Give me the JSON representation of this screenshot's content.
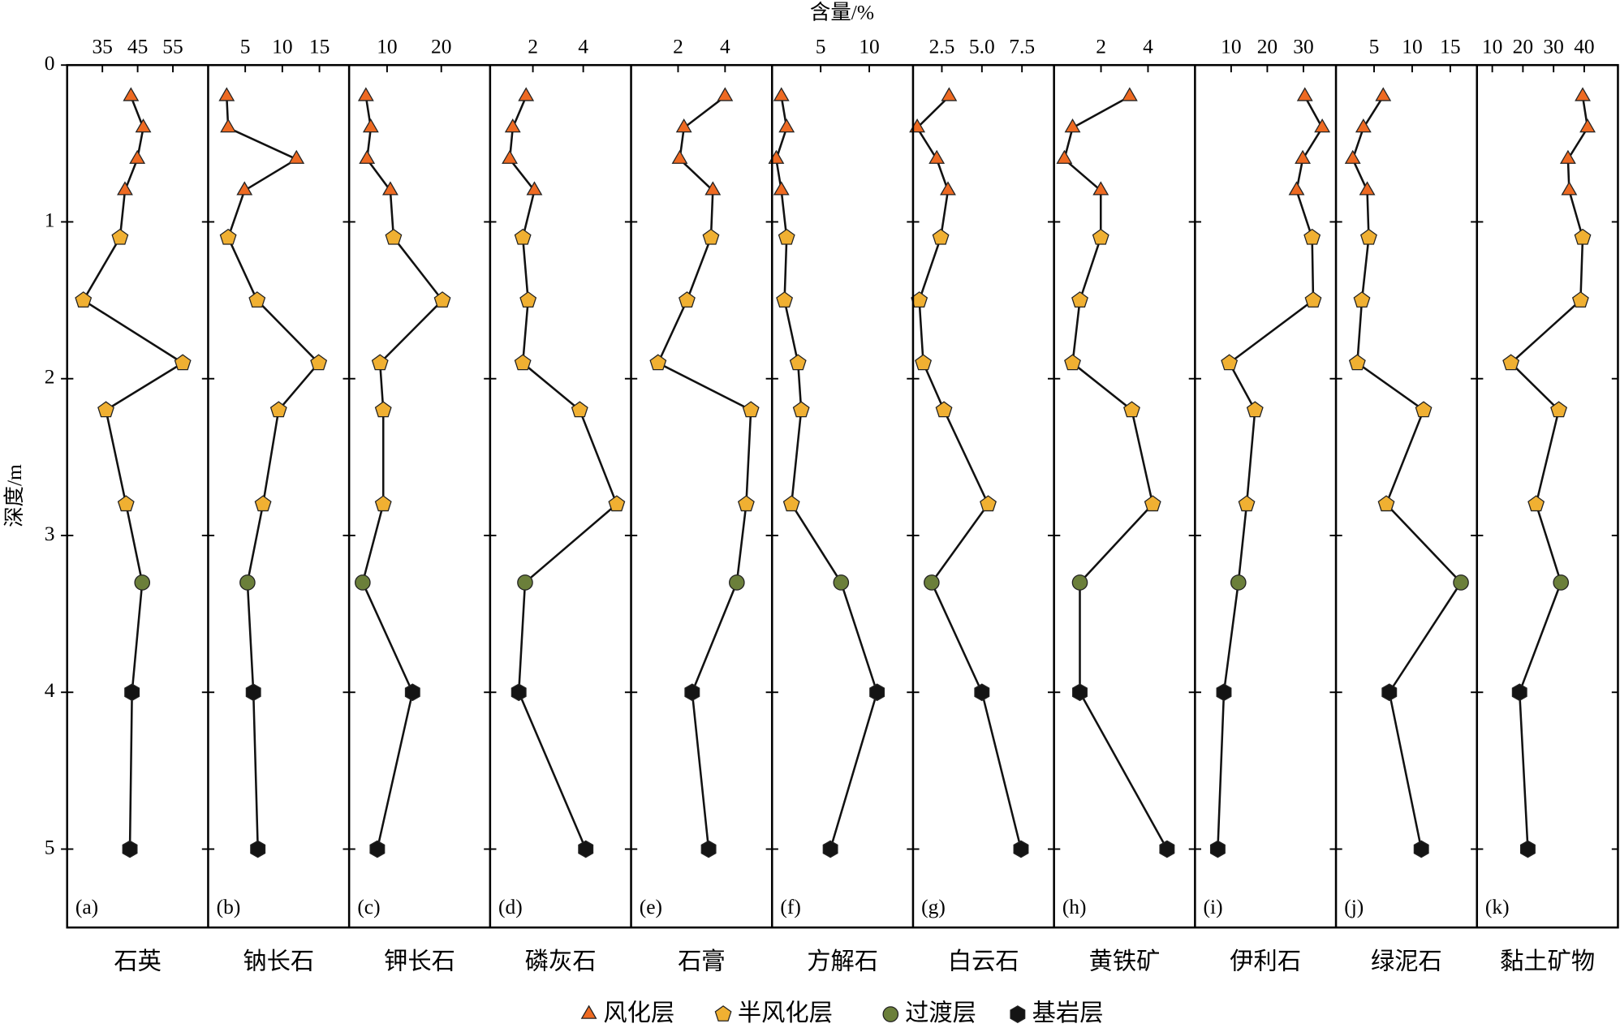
{
  "title": "含量/%",
  "ylabel": "深度/m",
  "ylim": [
    0,
    5.5
  ],
  "yticks": [
    0,
    1,
    2,
    3,
    4,
    5
  ],
  "layers": [
    {
      "name": "风化层",
      "color": "#ee6a22",
      "marker": "triangle",
      "depth": [
        0.2,
        0.4,
        0.6,
        0.8
      ]
    },
    {
      "name": "半风化层",
      "color": "#f0b032",
      "marker": "pentagon",
      "depth": [
        1.1,
        1.5,
        1.9,
        2.2,
        2.8
      ]
    },
    {
      "name": "过渡层",
      "color": "#6b7f3a",
      "marker": "circle",
      "depth": [
        3.3
      ]
    },
    {
      "name": "基岩层",
      "color": "#141414",
      "marker": "hexagon",
      "depth": [
        4.0,
        5.0
      ]
    }
  ],
  "chart_data": [
    {
      "type": "line",
      "label": "(a)",
      "xlabel": "石英",
      "xlim": [
        25,
        65
      ],
      "xticks": [
        35,
        45,
        55
      ],
      "series": [
        [
          43.1,
          46.6,
          44.9,
          41.4
        ],
        [
          40,
          29.6,
          57.8,
          36,
          41.7
        ],
        [
          46.3
        ],
        [
          43.4,
          42.8
        ]
      ]
    },
    {
      "type": "line",
      "label": "(b)",
      "xlabel": "钠长石",
      "xlim": [
        0,
        19
      ],
      "xticks": [
        5,
        10,
        15
      ],
      "series": [
        [
          2.5,
          2.7,
          11.9,
          4.9
        ],
        [
          2.7,
          6.6,
          14.9,
          9.5,
          7.4
        ],
        [
          5.3
        ],
        [
          6.1,
          6.7
        ]
      ]
    },
    {
      "type": "line",
      "label": "(c)",
      "xlabel": "钾长石",
      "xlim": [
        3,
        29
      ],
      "xticks": [
        10,
        20
      ],
      "series": [
        [
          6.1,
          7.0,
          6.3,
          10.6
        ],
        [
          11.2,
          20.2,
          8.7,
          9.3,
          9.3
        ],
        [
          5.5
        ],
        [
          14.7,
          8.2
        ]
      ]
    },
    {
      "type": "line",
      "label": "(d)",
      "xlabel": "磷灰石",
      "xlim": [
        0.3,
        5.9
      ],
      "xticks": [
        2,
        4
      ],
      "series": [
        [
          1.73,
          1.2,
          1.08,
          2.06
        ],
        [
          1.6,
          1.81,
          1.6,
          3.86,
          5.33
        ],
        [
          1.69
        ],
        [
          1.44,
          4.1
        ]
      ]
    },
    {
      "type": "line",
      "label": "(e)",
      "xlabel": "石膏",
      "xlim": [
        0,
        6
      ],
      "xticks": [
        2,
        4
      ],
      "series": [
        [
          4.0,
          2.25,
          2.07,
          3.48
        ],
        [
          3.4,
          2.38,
          1.15,
          5.1,
          4.9
        ],
        [
          4.5
        ],
        [
          2.6,
          3.3
        ]
      ]
    },
    {
      "type": "line",
      "label": "(f)",
      "xlabel": "方解石",
      "xlim": [
        0,
        14.5
      ],
      "xticks": [
        5,
        10
      ],
      "series": [
        [
          0.96,
          1.5,
          0.43,
          0.96
        ],
        [
          1.5,
          1.28,
          2.67,
          3.0,
          2.0
        ],
        [
          7.1
        ],
        [
          10.8,
          6.0
        ]
      ]
    },
    {
      "type": "line",
      "label": "(g)",
      "xlabel": "白云石",
      "xlim": [
        0.7,
        9.5
      ],
      "xticks": [
        2.5,
        {
          "value": 5,
          "label": "5.0"
        },
        7.5
      ],
      "series": [
        [
          2.95,
          0.96,
          2.18,
          2.88
        ],
        [
          2.43,
          1.09,
          1.34,
          2.63,
          5.39
        ],
        [
          1.86
        ],
        [
          5.0,
          7.44
        ]
      ]
    },
    {
      "type": "line",
      "label": "(h)",
      "xlabel": "黄铁矿",
      "xlim": [
        0,
        6
      ],
      "xticks": [
        2,
        4
      ],
      "series": [
        [
          3.22,
          0.79,
          0.44,
          1.99
        ],
        [
          1.99,
          1.1,
          0.79,
          3.31,
          4.2
        ],
        [
          1.1
        ],
        [
          1.1,
          4.81
        ]
      ]
    },
    {
      "type": "line",
      "label": "(i)",
      "xlabel": "伊利石",
      "xlim": [
        0,
        39
      ],
      "xticks": [
        10,
        20,
        30
      ],
      "series": [
        [
          30.4,
          35.2,
          29.8,
          28.1
        ],
        [
          32.4,
          32.7,
          9.5,
          16.6,
          14.3
        ],
        [
          12.0
        ],
        [
          8.0,
          6.3
        ]
      ]
    },
    {
      "type": "line",
      "label": "(j)",
      "xlabel": "绿泥石",
      "xlim": [
        0,
        18.5
      ],
      "xticks": [
        5,
        10,
        15
      ],
      "series": [
        [
          6.2,
          3.6,
          2.2,
          4.1
        ],
        [
          4.3,
          3.4,
          2.8,
          11.5,
          6.6
        ],
        [
          16.4
        ],
        [
          7.0,
          11.2
        ]
      ]
    },
    {
      "type": "line",
      "label": "(k)",
      "xlabel": "黏土矿物",
      "xlim": [
        5,
        51
      ],
      "xticks": [
        10,
        20,
        30,
        40
      ],
      "series": [
        [
          39.5,
          41.1,
          34.7,
          35.1
        ],
        [
          39.5,
          38.8,
          16.1,
          31.7,
          24.3
        ],
        [
          32.4
        ],
        [
          18.9,
          21.6
        ]
      ]
    }
  ]
}
